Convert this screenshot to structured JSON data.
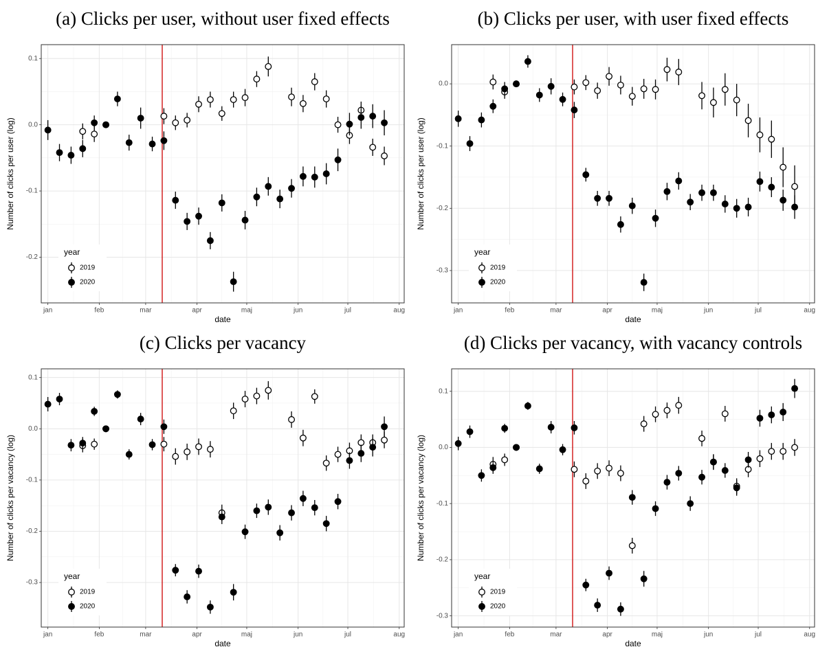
{
  "chart_data": [
    {
      "type": "scatter",
      "title": "(a) Clicks per user, without user fixed effects",
      "xlabel": "date",
      "ylabel": "Number of clicks per user (log)",
      "x": [
        1,
        8,
        15,
        22,
        29,
        36,
        43,
        50,
        57,
        64,
        71,
        78,
        85,
        92,
        99,
        106,
        113,
        120,
        127,
        134,
        141,
        148,
        155,
        162,
        169,
        176,
        183,
        190,
        197,
        204
      ],
      "xlim": [
        -3,
        216
      ],
      "xticks": [
        {
          "value": 1,
          "label": "jan"
        },
        {
          "value": 32,
          "label": "feb"
        },
        {
          "value": 60,
          "label": "mar"
        },
        {
          "value": 91,
          "label": "apr"
        },
        {
          "value": 121,
          "label": "maj"
        },
        {
          "value": 152,
          "label": "jun"
        },
        {
          "value": 182,
          "label": "jul"
        },
        {
          "value": 213,
          "label": "aug"
        }
      ],
      "ylim": [
        -0.269,
        0.121
      ],
      "yticks": [
        -0.2,
        -0.1,
        {
          "value": 0,
          "label": "0.0"
        },
        0.1
      ],
      "grid": true,
      "legend": "bottom-left",
      "legend_title": "year",
      "vline": 70,
      "vline_color": "#cc0000",
      "series": [
        {
          "name": "2019",
          "color": "#000000",
          "marker": "hollow",
          "values": [
            null,
            null,
            null,
            -0.01,
            -0.014,
            0,
            null,
            null,
            null,
            null,
            0.013,
            0.003,
            0.007,
            0.031,
            0.038,
            0.017,
            0.038,
            0.041,
            0.069,
            0.088,
            null,
            0.042,
            0.032,
            0.065,
            0.039,
            0.0,
            -0.016,
            0.022,
            -0.034,
            -0.047
          ],
          "errors": [
            null,
            null,
            null,
            0.012,
            0.012,
            0,
            null,
            null,
            null,
            null,
            0.012,
            0.011,
            0.011,
            0.012,
            0.012,
            0.011,
            0.012,
            0.013,
            0.012,
            0.015,
            null,
            0.014,
            0.013,
            0.013,
            0.013,
            0.012,
            0.013,
            0.013,
            0.013,
            0.014
          ]
        },
        {
          "name": "2020",
          "color": "#000000",
          "marker": "filled",
          "values": [
            -0.008,
            -0.042,
            -0.046,
            -0.036,
            0.003,
            0,
            0.039,
            -0.027,
            0.01,
            -0.029,
            -0.024,
            -0.114,
            -0.146,
            -0.138,
            -0.175,
            -0.118,
            -0.237,
            -0.144,
            -0.109,
            -0.093,
            -0.112,
            -0.096,
            -0.078,
            -0.079,
            -0.074,
            -0.053,
            0.001,
            0.011,
            0.013,
            0.003
          ],
          "errors": [
            0.015,
            0.013,
            0.013,
            0.013,
            0.011,
            0,
            0.011,
            0.012,
            0.016,
            0.011,
            0.014,
            0.013,
            0.013,
            0.013,
            0.013,
            0.013,
            0.015,
            0.014,
            0.014,
            0.014,
            0.014,
            0.014,
            0.015,
            0.016,
            0.016,
            0.017,
            0.017,
            0.017,
            0.018,
            0.019
          ]
        }
      ]
    },
    {
      "type": "scatter",
      "title": "(b) Clicks per user, with user fixed effects",
      "xlabel": "date",
      "ylabel": "Number of clicks per user (log)",
      "x": [
        1,
        8,
        15,
        22,
        29,
        36,
        43,
        50,
        57,
        64,
        71,
        78,
        85,
        92,
        99,
        106,
        113,
        120,
        127,
        134,
        141,
        148,
        155,
        162,
        169,
        176,
        183,
        190,
        197,
        204
      ],
      "xlim": [
        -3,
        216
      ],
      "xticks": [
        {
          "value": 1,
          "label": "jan"
        },
        {
          "value": 32,
          "label": "feb"
        },
        {
          "value": 60,
          "label": "mar"
        },
        {
          "value": 91,
          "label": "apr"
        },
        {
          "value": 121,
          "label": "maj"
        },
        {
          "value": 152,
          "label": "jun"
        },
        {
          "value": 182,
          "label": "jul"
        },
        {
          "value": 213,
          "label": "aug"
        }
      ],
      "ylim": [
        -0.352,
        0.063
      ],
      "yticks": [
        -0.3,
        -0.2,
        -0.1,
        {
          "value": 0,
          "label": "0.0"
        }
      ],
      "grid": true,
      "legend": "bottom-left",
      "legend_title": "year",
      "vline": 70,
      "vline_color": "#cc0000",
      "series": [
        {
          "name": "2019",
          "color": "#000000",
          "marker": "hollow",
          "values": [
            null,
            null,
            null,
            0.003,
            -0.013,
            0,
            null,
            null,
            null,
            null,
            -0.005,
            0.002,
            -0.011,
            0.012,
            -0.002,
            -0.02,
            -0.008,
            -0.009,
            0.023,
            0.019,
            null,
            -0.019,
            -0.03,
            -0.009,
            -0.026,
            -0.059,
            -0.082,
            -0.089,
            -0.134,
            -0.165
          ],
          "errors": [
            null,
            null,
            null,
            0.012,
            0.011,
            0,
            null,
            null,
            null,
            null,
            0.012,
            0.012,
            0.013,
            0.015,
            0.015,
            0.015,
            0.016,
            0.016,
            0.019,
            0.021,
            null,
            0.022,
            0.024,
            0.026,
            0.026,
            0.027,
            0.028,
            0.03,
            0.032,
            0.034
          ]
        },
        {
          "name": "2020",
          "color": "#000000",
          "marker": "filled",
          "values": [
            -0.056,
            -0.096,
            -0.058,
            -0.036,
            -0.008,
            0,
            0.036,
            -0.018,
            -0.004,
            -0.025,
            -0.042,
            -0.146,
            -0.184,
            -0.184,
            -0.226,
            -0.196,
            -0.319,
            -0.216,
            -0.173,
            -0.156,
            -0.19,
            -0.175,
            -0.175,
            -0.193,
            -0.2,
            -0.198,
            -0.157,
            -0.166,
            -0.187,
            -0.198
          ],
          "errors": [
            0.013,
            0.012,
            0.012,
            0.011,
            0.011,
            0,
            0.01,
            0.011,
            0.013,
            0.011,
            0.013,
            0.011,
            0.012,
            0.012,
            0.013,
            0.013,
            0.014,
            0.014,
            0.014,
            0.014,
            0.013,
            0.013,
            0.013,
            0.014,
            0.015,
            0.015,
            0.016,
            0.016,
            0.017,
            0.019
          ]
        }
      ]
    },
    {
      "type": "scatter",
      "title": "(c) Clicks per vacancy",
      "xlabel": "date",
      "ylabel": "Number of clicks per vacancy (log)",
      "x": [
        1,
        8,
        15,
        22,
        29,
        36,
        43,
        50,
        57,
        64,
        71,
        78,
        85,
        92,
        99,
        106,
        113,
        120,
        127,
        134,
        141,
        148,
        155,
        162,
        169,
        176,
        183,
        190,
        197,
        204
      ],
      "xlim": [
        -3,
        216
      ],
      "xticks": [
        {
          "value": 1,
          "label": "jan"
        },
        {
          "value": 32,
          "label": "feb"
        },
        {
          "value": 60,
          "label": "mar"
        },
        {
          "value": 91,
          "label": "apr"
        },
        {
          "value": 121,
          "label": "maj"
        },
        {
          "value": 152,
          "label": "jun"
        },
        {
          "value": 182,
          "label": "jul"
        },
        {
          "value": 213,
          "label": "aug"
        }
      ],
      "ylim": [
        -0.387,
        0.117
      ],
      "yticks": [
        -0.3,
        -0.2,
        -0.1,
        {
          "value": 0,
          "label": "0.0"
        },
        0.1
      ],
      "grid": true,
      "legend": "bottom-left",
      "legend_title": "year",
      "vline": 70,
      "vline_color": "#cc0000",
      "series": [
        {
          "name": "2019",
          "color": "#000000",
          "marker": "hollow",
          "values": [
            null,
            null,
            null,
            -0.033,
            -0.03,
            0,
            null,
            null,
            null,
            null,
            -0.03,
            -0.054,
            -0.045,
            -0.035,
            -0.04,
            -0.164,
            0.035,
            0.058,
            0.064,
            0.075,
            null,
            0.018,
            -0.018,
            0.063,
            -0.067,
            -0.05,
            -0.043,
            -0.027,
            -0.027,
            -0.022
          ],
          "errors": [
            null,
            null,
            null,
            0.013,
            0.011,
            0,
            null,
            null,
            null,
            null,
            0.014,
            0.016,
            0.016,
            0.016,
            0.016,
            0.016,
            0.016,
            0.016,
            0.016,
            0.018,
            null,
            0.016,
            0.016,
            0.014,
            0.015,
            0.015,
            0.016,
            0.016,
            0.016,
            0.016
          ]
        },
        {
          "name": "2020",
          "color": "#000000",
          "marker": "filled",
          "values": [
            0.048,
            0.058,
            -0.032,
            -0.028,
            0.034,
            0,
            0.067,
            -0.05,
            0.019,
            -0.031,
            0.004,
            -0.276,
            -0.328,
            -0.278,
            -0.348,
            -0.172,
            -0.319,
            -0.201,
            -0.16,
            -0.153,
            -0.203,
            -0.164,
            -0.136,
            -0.154,
            -0.185,
            -0.142,
            -0.062,
            -0.048,
            -0.036,
            0.004
          ],
          "errors": [
            0.014,
            0.012,
            0.012,
            0.012,
            0.009,
            0,
            0.008,
            0.01,
            0.012,
            0.011,
            0.014,
            0.012,
            0.013,
            0.013,
            0.013,
            0.014,
            0.016,
            0.014,
            0.014,
            0.015,
            0.015,
            0.015,
            0.015,
            0.015,
            0.015,
            0.015,
            0.016,
            0.017,
            0.018,
            0.02
          ]
        }
      ]
    },
    {
      "type": "scatter",
      "title": "(d) Clicks per vacancy, with vacancy controls",
      "xlabel": "date",
      "ylabel": "Number of clicks per vacancy (log)",
      "x": [
        1,
        8,
        15,
        22,
        29,
        36,
        43,
        50,
        57,
        64,
        71,
        78,
        85,
        92,
        99,
        106,
        113,
        120,
        127,
        134,
        141,
        148,
        155,
        162,
        169,
        176,
        183,
        190,
        197,
        204
      ],
      "xlim": [
        -3,
        216
      ],
      "xticks": [
        {
          "value": 1,
          "label": "jan"
        },
        {
          "value": 32,
          "label": "feb"
        },
        {
          "value": 60,
          "label": "mar"
        },
        {
          "value": 91,
          "label": "apr"
        },
        {
          "value": 121,
          "label": "maj"
        },
        {
          "value": 152,
          "label": "jun"
        },
        {
          "value": 182,
          "label": "jul"
        },
        {
          "value": 213,
          "label": "aug"
        }
      ],
      "ylim": [
        -0.32,
        0.14
      ],
      "yticks": [
        -0.3,
        -0.2,
        -0.1,
        {
          "value": 0,
          "label": "0.0"
        },
        0.1
      ],
      "grid": true,
      "legend": "bottom-left",
      "legend_title": "year",
      "vline": 70,
      "vline_color": "#cc0000",
      "series": [
        {
          "name": "2019",
          "color": "#000000",
          "marker": "hollow",
          "values": [
            null,
            null,
            null,
            -0.03,
            -0.022,
            0,
            null,
            null,
            null,
            null,
            -0.039,
            -0.06,
            -0.042,
            -0.037,
            -0.046,
            -0.175,
            0.042,
            0.059,
            0.066,
            0.075,
            null,
            0.016,
            -0.026,
            0.06,
            -0.069,
            -0.039,
            -0.02,
            -0.007,
            -0.007,
            0.0
          ],
          "errors": [
            null,
            null,
            null,
            0.013,
            0.011,
            0,
            null,
            null,
            null,
            null,
            0.014,
            0.014,
            0.014,
            0.014,
            0.014,
            0.014,
            0.014,
            0.014,
            0.014,
            0.015,
            null,
            0.014,
            0.014,
            0.014,
            0.014,
            0.014,
            0.015,
            0.015,
            0.015,
            0.015
          ]
        },
        {
          "name": "2020",
          "color": "#000000",
          "marker": "filled",
          "values": [
            0.007,
            0.028,
            -0.05,
            -0.036,
            0.034,
            0,
            0.074,
            -0.038,
            0.036,
            -0.004,
            0.035,
            -0.245,
            -0.281,
            -0.224,
            -0.288,
            -0.089,
            -0.234,
            -0.109,
            -0.062,
            -0.046,
            -0.1,
            -0.053,
            -0.026,
            -0.041,
            -0.072,
            -0.022,
            0.052,
            0.058,
            0.063,
            0.105
          ],
          "errors": [
            0.012,
            0.011,
            0.011,
            0.011,
            0.008,
            0,
            0.007,
            0.009,
            0.011,
            0.01,
            0.012,
            0.011,
            0.012,
            0.012,
            0.012,
            0.013,
            0.014,
            0.013,
            0.013,
            0.013,
            0.013,
            0.013,
            0.013,
            0.013,
            0.014,
            0.014,
            0.015,
            0.015,
            0.016,
            0.017
          ]
        }
      ]
    }
  ]
}
